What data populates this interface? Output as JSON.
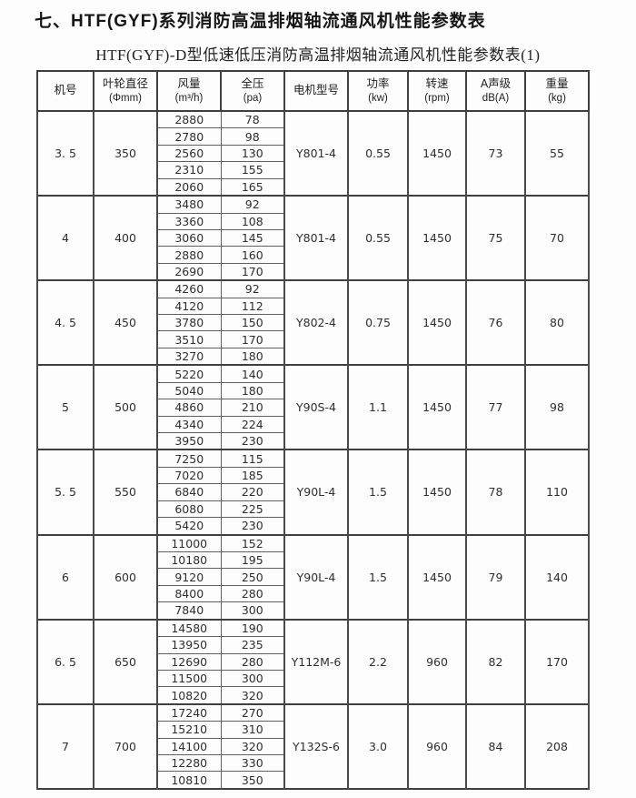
{
  "page": {
    "title": "七、HTF(GYF)系列消防高温排烟轴流通风机性能参数表",
    "subtitle": "HTF(GYF)-D型低速低压消防高温排烟轴流通风机性能参数表(1)"
  },
  "colors": {
    "border_dark": "#3f3f3f",
    "border_light": "#606060",
    "text": "#2b2b2b",
    "background": "#fdfdfd"
  },
  "table": {
    "headers": [
      {
        "label": "机号",
        "unit": ""
      },
      {
        "label": "叶轮直径",
        "unit": "(Φmm)"
      },
      {
        "label": "风量",
        "unit": "(m³/h)"
      },
      {
        "label": "全压",
        "unit": "(pa)"
      },
      {
        "label": "电机型号",
        "unit": ""
      },
      {
        "label": "功率",
        "unit": "(kw)"
      },
      {
        "label": "转速",
        "unit": "(rpm)"
      },
      {
        "label": "A声级",
        "unit": "dB(A)"
      },
      {
        "label": "重量",
        "unit": "(kg)"
      }
    ],
    "groups": [
      {
        "model_no": "3. 5",
        "impeller_diameter": "350",
        "motor_model": "Y801-4",
        "power_kw": "0.55",
        "speed_rpm": "1450",
        "noise_dba": "73",
        "weight_kg": "55",
        "rows": [
          [
            "2880",
            "78"
          ],
          [
            "2780",
            "98"
          ],
          [
            "2560",
            "130"
          ],
          [
            "2310",
            "155"
          ],
          [
            "2060",
            "165"
          ]
        ]
      },
      {
        "model_no": "4",
        "impeller_diameter": "400",
        "motor_model": "Y801-4",
        "power_kw": "0.55",
        "speed_rpm": "1450",
        "noise_dba": "75",
        "weight_kg": "70",
        "rows": [
          [
            "3480",
            "92"
          ],
          [
            "3360",
            "108"
          ],
          [
            "3060",
            "145"
          ],
          [
            "2880",
            "160"
          ],
          [
            "2690",
            "170"
          ]
        ]
      },
      {
        "model_no": "4. 5",
        "impeller_diameter": "450",
        "motor_model": "Y802-4",
        "power_kw": "0.75",
        "speed_rpm": "1450",
        "noise_dba": "76",
        "weight_kg": "80",
        "rows": [
          [
            "4260",
            "92"
          ],
          [
            "4120",
            "112"
          ],
          [
            "3780",
            "150"
          ],
          [
            "3510",
            "170"
          ],
          [
            "3270",
            "180"
          ]
        ]
      },
      {
        "model_no": "5",
        "impeller_diameter": "500",
        "motor_model": "Y90S-4",
        "power_kw": "1.1",
        "speed_rpm": "1450",
        "noise_dba": "77",
        "weight_kg": "98",
        "rows": [
          [
            "5220",
            "140"
          ],
          [
            "5040",
            "180"
          ],
          [
            "4860",
            "210"
          ],
          [
            "4340",
            "224"
          ],
          [
            "3950",
            "230"
          ]
        ]
      },
      {
        "model_no": "5. 5",
        "impeller_diameter": "550",
        "motor_model": "Y90L-4",
        "power_kw": "1.5",
        "speed_rpm": "1450",
        "noise_dba": "78",
        "weight_kg": "110",
        "rows": [
          [
            "7250",
            "115"
          ],
          [
            "7020",
            "185"
          ],
          [
            "6840",
            "220"
          ],
          [
            "6080",
            "225"
          ],
          [
            "5420",
            "230"
          ]
        ]
      },
      {
        "model_no": "6",
        "impeller_diameter": "600",
        "motor_model": "Y90L-4",
        "power_kw": "1.5",
        "speed_rpm": "1450",
        "noise_dba": "79",
        "weight_kg": "140",
        "rows": [
          [
            "11000",
            "152"
          ],
          [
            "10180",
            "195"
          ],
          [
            "9120",
            "250"
          ],
          [
            "8400",
            "280"
          ],
          [
            "7840",
            "300"
          ]
        ]
      },
      {
        "model_no": "6. 5",
        "impeller_diameter": "650",
        "motor_model": "Y112M-6",
        "power_kw": "2.2",
        "speed_rpm": "960",
        "noise_dba": "82",
        "weight_kg": "170",
        "rows": [
          [
            "14580",
            "190"
          ],
          [
            "13950",
            "235"
          ],
          [
            "12690",
            "280"
          ],
          [
            "11500",
            "300"
          ],
          [
            "10820",
            "320"
          ]
        ]
      },
      {
        "model_no": "7",
        "impeller_diameter": "700",
        "motor_model": "Y132S-6",
        "power_kw": "3.0",
        "speed_rpm": "960",
        "noise_dba": "84",
        "weight_kg": "208",
        "rows": [
          [
            "17240",
            "270"
          ],
          [
            "15210",
            "310"
          ],
          [
            "14100",
            "320"
          ],
          [
            "12280",
            "330"
          ],
          [
            "10810",
            "350"
          ]
        ]
      }
    ]
  }
}
